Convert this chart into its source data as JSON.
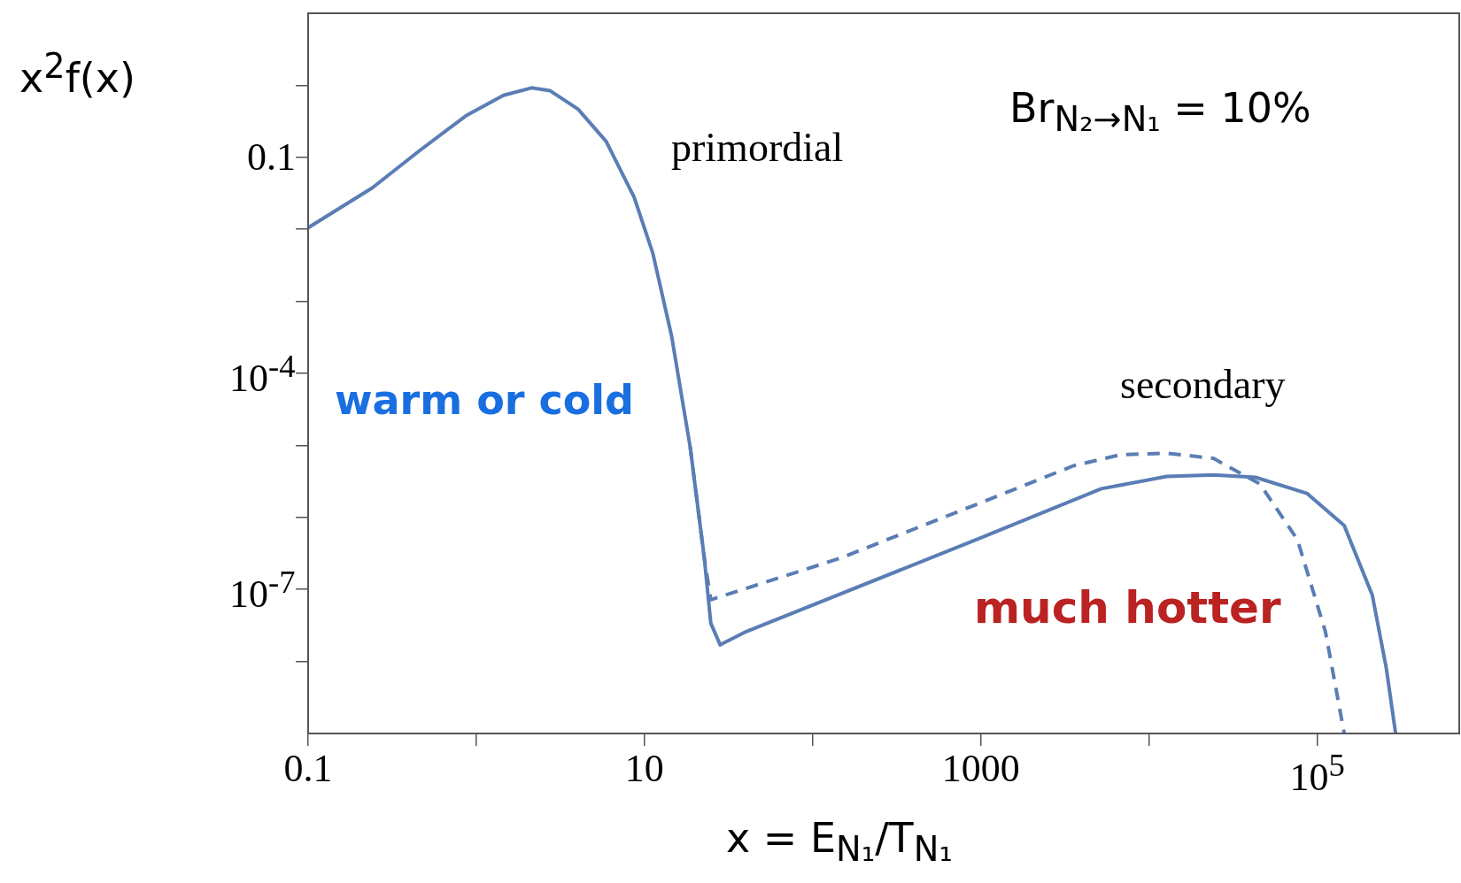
{
  "chart_data": {
    "type": "line",
    "xlabel": "x = E$_{N₁}$/T$_{N₁}$",
    "ylabel": "x$^{2}$f(x)",
    "log": "xy",
    "grid": false,
    "legend": false,
    "marker": "none",
    "xlim": [
      0.1,
      700000
    ],
    "ylim": [
      1e-09,
      10
    ],
    "xticks": [
      0.1,
      {
        "value": 1,
        "label": null
      },
      10,
      {
        "value": 100,
        "label": null
      },
      1000,
      {
        "value": 10000,
        "label": null
      },
      {
        "value": 100000,
        "label": "10$^{5}$"
      }
    ],
    "yticks": [
      {
        "value": 1,
        "label": null
      },
      0.1,
      {
        "value": 0.01,
        "label": null
      },
      {
        "value": 0.001,
        "label": null
      },
      {
        "value": 0.0001,
        "label": "10$^{-4}$"
      },
      {
        "value": 1e-05,
        "label": null
      },
      {
        "value": 1e-06,
        "label": null
      },
      {
        "value": 1e-07,
        "label": "10$^{-7}$"
      },
      {
        "value": 1e-08,
        "label": null
      }
    ],
    "annotations": [
      "primordial",
      "secondary",
      "Br$_{N₂→N₁}$ = 10%",
      "warm or cold",
      "much hotter"
    ],
    "series": [
      {
        "color": "#5a7db5",
        "line_style": "solid",
        "x": [
          0.1,
          0.241,
          0.458,
          0.869,
          1.45,
          2.13,
          2.75,
          4.03,
          5.92,
          8.68,
          11.2,
          14.5,
          18.7,
          22.7,
          24.8,
          28.2,
          40.3,
          1000,
          5210,
          12760,
          24200,
          43000,
          86900,
          145000,
          213000,
          258000,
          293000
        ],
        "values": [
          0.0105,
          0.0377,
          0.123,
          0.378,
          0.726,
          0.92,
          0.84,
          0.466,
          0.166,
          0.028,
          0.0047,
          0.00033,
          9.5e-06,
          2.7e-07,
          3.4e-08,
          1.7e-08,
          2.6e-08,
          5.2e-07,
          2.5e-06,
          3.7e-06,
          3.9e-06,
          3.6e-06,
          2.16e-06,
          7.7e-07,
          8.3e-08,
          8e-09,
          1e-09
        ]
      },
      {
        "color": "#5a7db5",
        "line_style": "dashed",
        "x": [
          18.7,
          22.7,
          24.8,
          145,
          1000,
          3548,
          6730,
          12760,
          24200,
          45800,
          76400,
          112000,
          145000
        ],
        "values": [
          9.5e-06,
          2.7e-07,
          7.2e-08,
          2.7e-07,
          1.6e-06,
          5.2e-06,
          7.4e-06,
          7.8e-06,
          6.6e-06,
          2.9e-06,
          4.9e-07,
          2.6e-08,
          1e-09
        ]
      }
    ]
  }
}
